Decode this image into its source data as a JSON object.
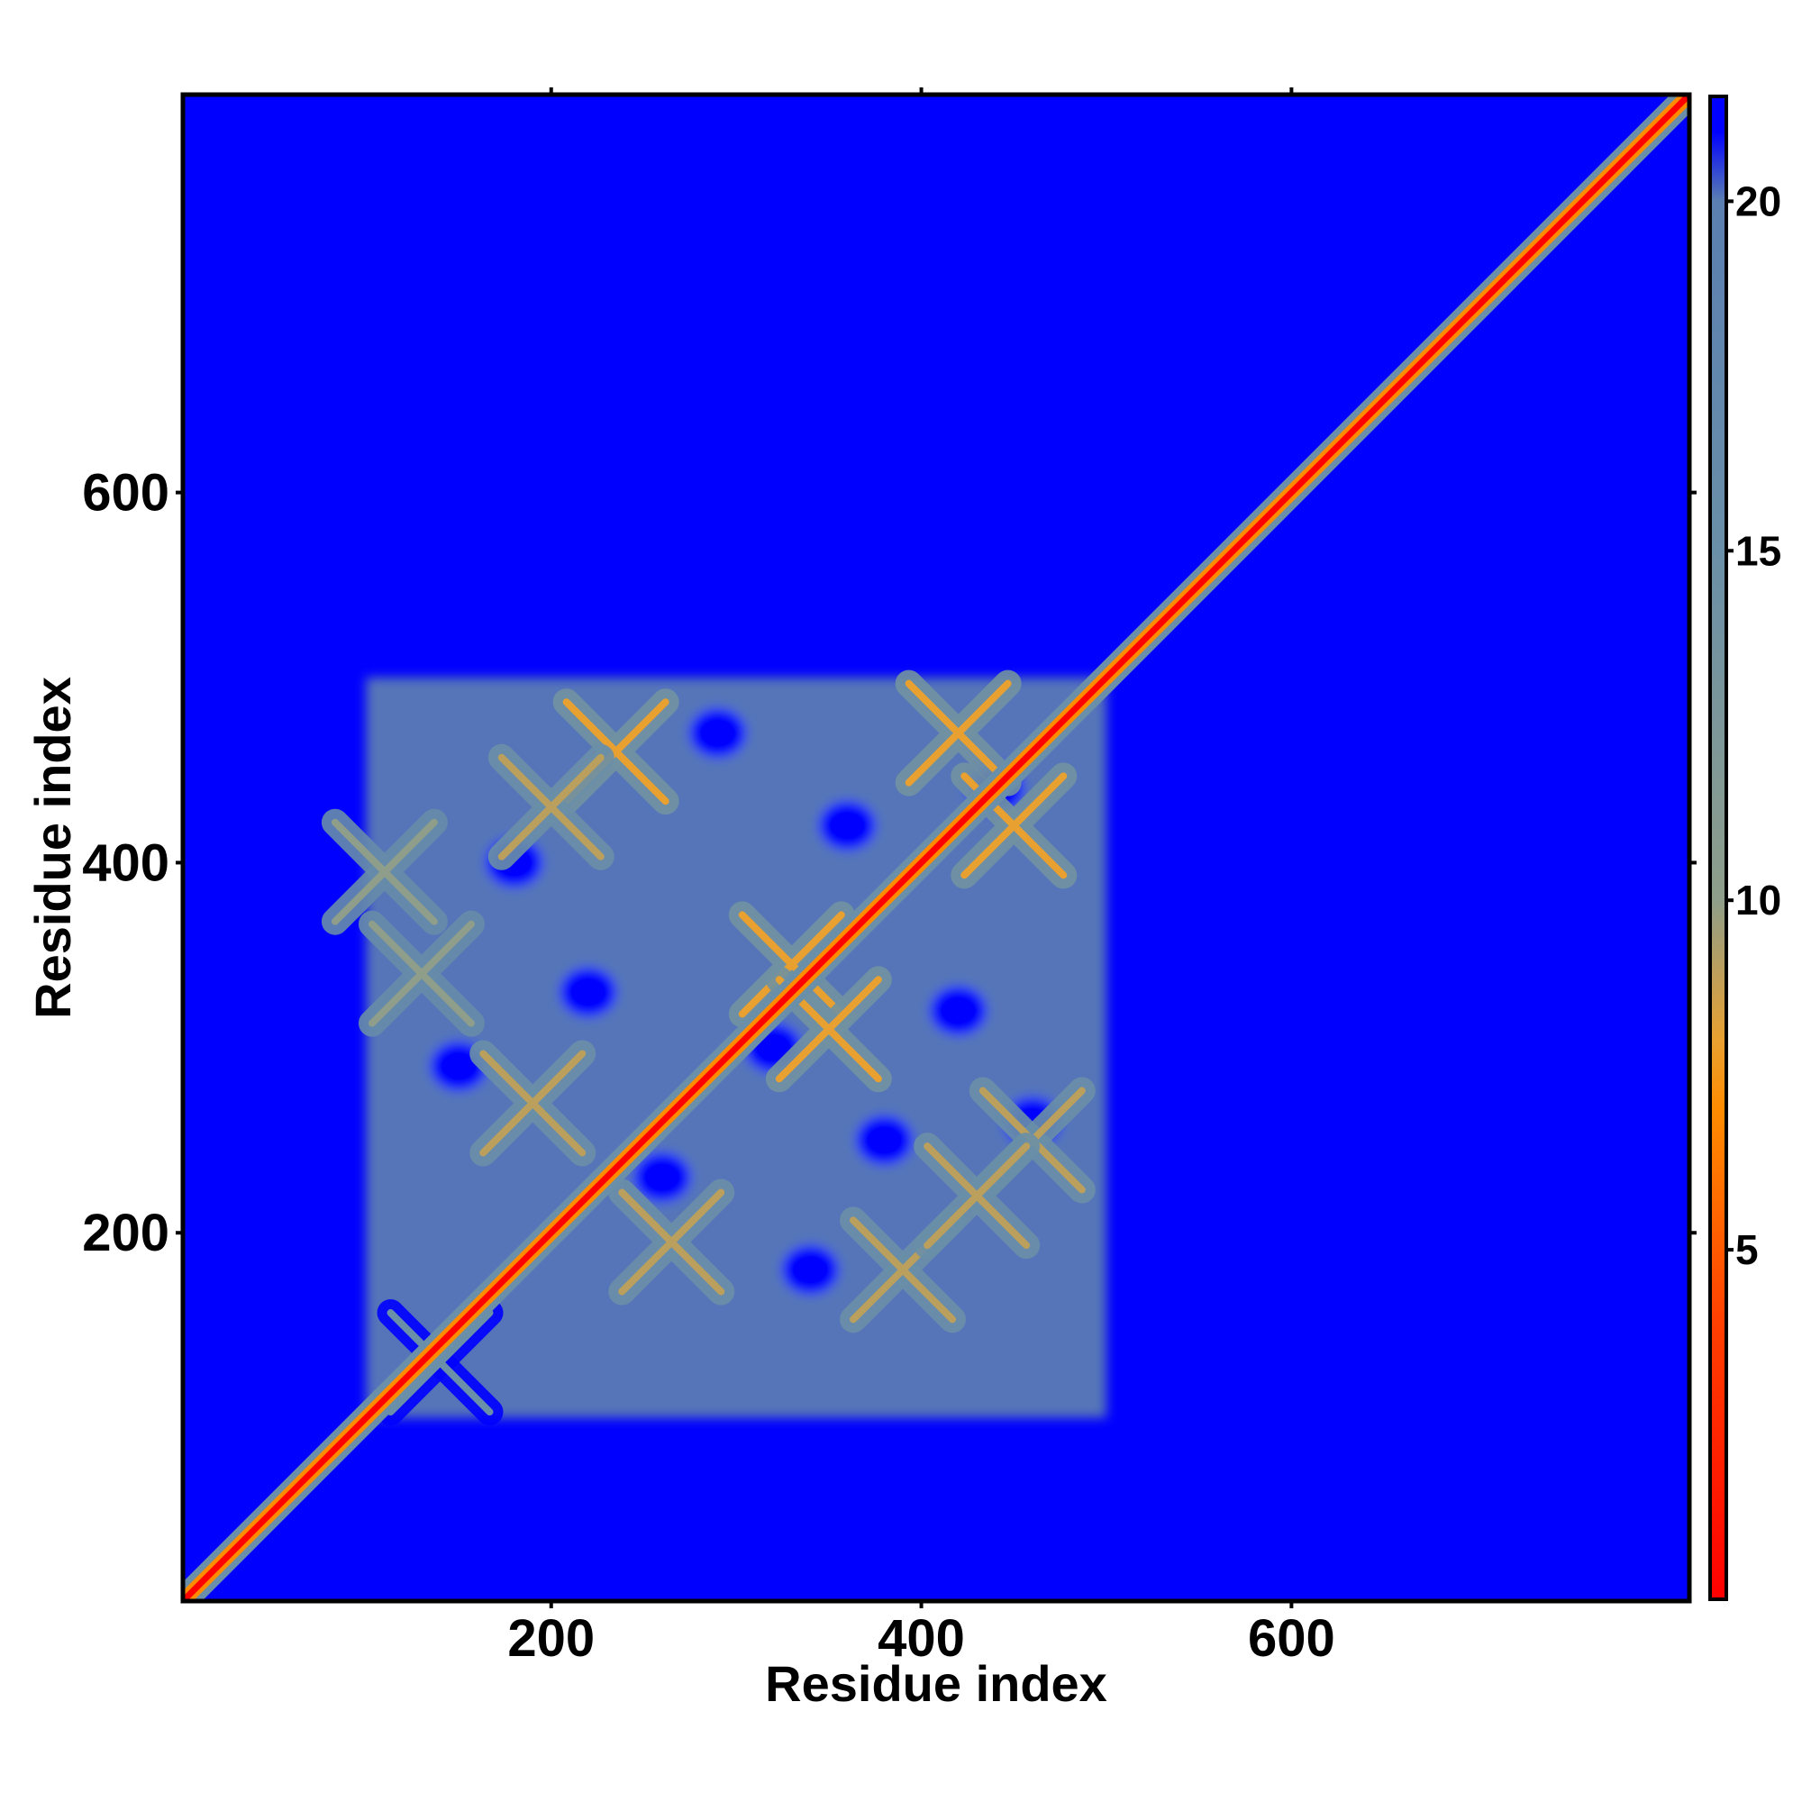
{
  "chart_data": {
    "type": "heatmap",
    "title": "",
    "xlabel": "Residue index",
    "ylabel": "Residue index",
    "xlim": [
      1,
      815
    ],
    "ylim": [
      1,
      815
    ],
    "x_ticks": [
      200,
      400,
      600
    ],
    "y_ticks": [
      200,
      400,
      600
    ],
    "x_tick_labels": [
      "200",
      "400",
      "600"
    ],
    "y_tick_labels": [
      "200",
      "400",
      "600"
    ],
    "colorbar": {
      "range": [
        0,
        21.5
      ],
      "ticks": [
        5,
        10,
        15,
        20
      ],
      "tick_labels": [
        "5",
        "10",
        "15",
        "20"
      ],
      "stops": [
        {
          "value": 0,
          "color": "#ff0000"
        },
        {
          "value": 4,
          "color": "#ff4000"
        },
        {
          "value": 7,
          "color": "#ff8c00"
        },
        {
          "value": 8,
          "color": "#e8a030"
        },
        {
          "value": 10,
          "color": "#8e9e8a"
        },
        {
          "value": 15,
          "color": "#6a8fa8"
        },
        {
          "value": 20,
          "color": "#5b7fb0"
        },
        {
          "value": 21,
          "color": "#0000ff"
        }
      ]
    },
    "background_value": 21,
    "background_color": "#0000ff",
    "diagonal": {
      "value": 1.5,
      "color": "#ff0000",
      "halo_color": "#6a8fa8"
    },
    "contact_block": {
      "x_range": [
        100,
        500
      ],
      "y_range": [
        100,
        500
      ],
      "value": 17,
      "color": "#6a8fa8"
    },
    "contact_patterns": [
      {
        "x": 140,
        "y": 130,
        "value": 15
      },
      {
        "x": 235,
        "y": 460,
        "value": 8
      },
      {
        "x": 200,
        "y": 430,
        "value": 9
      },
      {
        "x": 330,
        "y": 345,
        "value": 8
      },
      {
        "x": 350,
        "y": 310,
        "value": 8
      },
      {
        "x": 390,
        "y": 180,
        "value": 9
      },
      {
        "x": 420,
        "y": 470,
        "value": 8
      },
      {
        "x": 450,
        "y": 420,
        "value": 8
      },
      {
        "x": 460,
        "y": 250,
        "value": 9
      },
      {
        "x": 430,
        "y": 220,
        "value": 9
      },
      {
        "x": 190,
        "y": 270,
        "value": 9
      },
      {
        "x": 265,
        "y": 195,
        "value": 9
      },
      {
        "x": 110,
        "y": 395,
        "value": 10
      },
      {
        "x": 130,
        "y": 340,
        "value": 10
      }
    ]
  }
}
